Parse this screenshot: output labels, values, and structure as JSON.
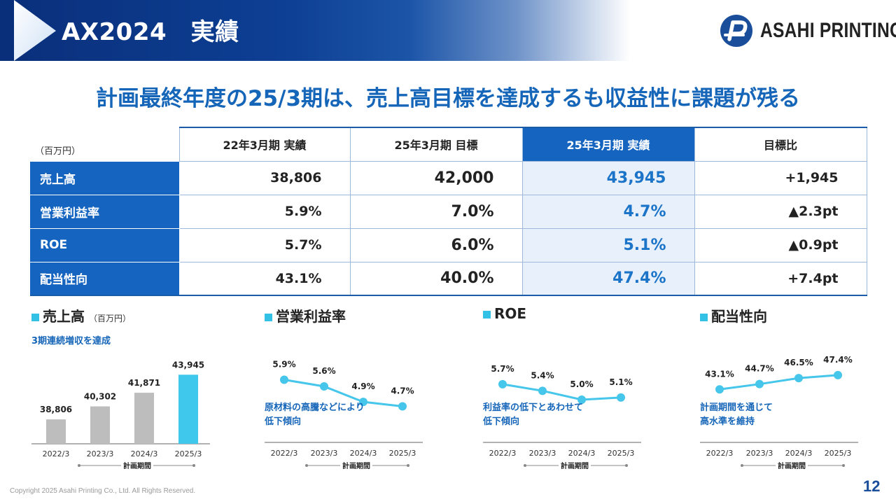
{
  "header": {
    "title": "AX2024　実績"
  },
  "logo": {
    "text": "ASAHI PRINTING"
  },
  "headline": "計画最終年度の25/3期は、売上高目標を達成するも収益性に課題が残る",
  "table": {
    "unit": "（百万円）",
    "columns": [
      "22年3月期  実績",
      "25年3月期  目標",
      "25年3月期  実績",
      "目標比"
    ],
    "rows": [
      {
        "label": "売上高",
        "values": [
          "38,806",
          "42,000",
          "43,945",
          "+1,945"
        ]
      },
      {
        "label": "営業利益率",
        "values": [
          "5.9%",
          "7.0%",
          "4.7%",
          "▲2.3pt"
        ]
      },
      {
        "label": "ROE",
        "values": [
          "5.7%",
          "6.0%",
          "5.1%",
          "▲0.9pt"
        ]
      },
      {
        "label": "配当性向",
        "values": [
          "43.1%",
          "40.0%",
          "47.4%",
          "+7.4pt"
        ]
      }
    ]
  },
  "chart_data": [
    {
      "type": "bar",
      "title": "売上高",
      "unit": "（百万円）",
      "annotation": "3期連続増収を達成",
      "categories": [
        "2022/3",
        "2023/3",
        "2024/3",
        "2025/3"
      ],
      "values": [
        38806,
        40302,
        41871,
        43945
      ],
      "value_labels": [
        "38,806",
        "40,302",
        "41,871",
        "43,945"
      ],
      "ylim": [
        36000,
        45500
      ],
      "period_label": "計画期間",
      "colors": {
        "bar": "#bdbdbd",
        "highlight": "#3fc8ec"
      }
    },
    {
      "type": "line",
      "title": "営業利益率",
      "annotation": [
        "原材料の高騰などにより",
        "低下傾向"
      ],
      "categories": [
        "2022/3",
        "2023/3",
        "2024/3",
        "2025/3"
      ],
      "values": [
        5.9,
        5.6,
        4.9,
        4.7
      ],
      "value_labels": [
        "5.9%",
        "5.6%",
        "4.9%",
        "4.7%"
      ],
      "ylim": [
        2.0,
        8.0
      ],
      "period_label": "計画期間",
      "colors": {
        "line": "#45c6ea"
      }
    },
    {
      "type": "line",
      "title": "ROE",
      "annotation": [
        "利益率の低下とあわせて",
        "低下傾向"
      ],
      "categories": [
        "2022/3",
        "2023/3",
        "2024/3",
        "2025/3"
      ],
      "values": [
        5.7,
        5.4,
        5.0,
        5.1
      ],
      "value_labels": [
        "5.7%",
        "5.4%",
        "5.0%",
        "5.1%"
      ],
      "ylim": [
        2.0,
        8.0
      ],
      "period_label": "計画期間",
      "colors": {
        "line": "#45c6ea"
      }
    },
    {
      "type": "line",
      "title": "配当性向",
      "annotation": [
        "計画期間を通じて",
        "高水準を維持"
      ],
      "categories": [
        "2022/3",
        "2023/3",
        "2024/3",
        "2025/3"
      ],
      "values": [
        43.1,
        44.7,
        46.5,
        47.4
      ],
      "value_labels": [
        "43.1%",
        "44.7%",
        "46.5%",
        "47.4%"
      ],
      "ylim": [
        20,
        60
      ],
      "period_label": "計画期間",
      "colors": {
        "line": "#45c6ea"
      }
    }
  ],
  "footer": {
    "copyright": "Copyright 2025 Asahi Printing Co., Ltd. All Rights Reserved.",
    "page": "12"
  },
  "colors": {
    "brand": "#0d3f94",
    "accent": "#1565c0",
    "headline": "#1565b8",
    "highlight_cell": "#e7f0fb"
  }
}
